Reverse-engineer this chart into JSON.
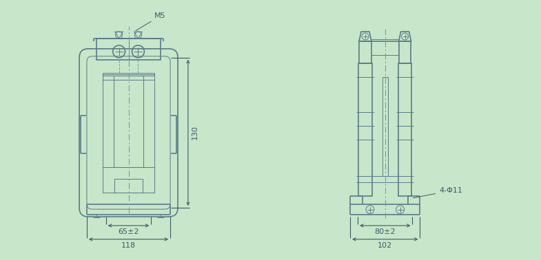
{
  "bg_color": "#c8e6c9",
  "line_color": "#5a7a8a",
  "dim_color": "#3a5a6a",
  "dash_color": "#7a9aaa",
  "labels": {
    "M5": "M5",
    "130": "130",
    "65_2": "65±2",
    "118": "118",
    "4_phi11": "4-Φ11",
    "80_2": "80±2",
    "102": "102"
  },
  "lw": 1.2,
  "lw_thin": 0.7
}
